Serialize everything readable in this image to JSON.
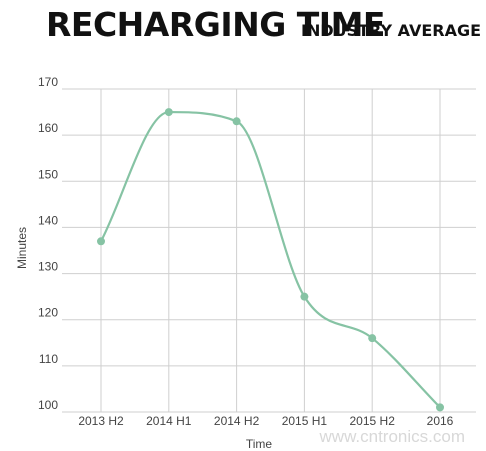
{
  "chart_data": {
    "type": "line",
    "title": "RECHARGING TIME",
    "subtitle": "INDUSTRY AVERAGE",
    "xlabel": "Time",
    "ylabel": "Minutes",
    "categories": [
      "2013 H2",
      "2014 H1",
      "2014 H2",
      "2015 H1",
      "2015 H2",
      "2016"
    ],
    "series": [
      {
        "values": [
          137,
          165,
          163,
          125,
          116,
          101
        ]
      }
    ],
    "ylim": [
      100,
      170
    ],
    "yticks": [
      "100",
      "110",
      "120",
      "130",
      "140",
      "150",
      "160",
      "170"
    ],
    "grid": true,
    "line_color": "#86c3a4"
  },
  "watermark": "www.cntronics.com"
}
